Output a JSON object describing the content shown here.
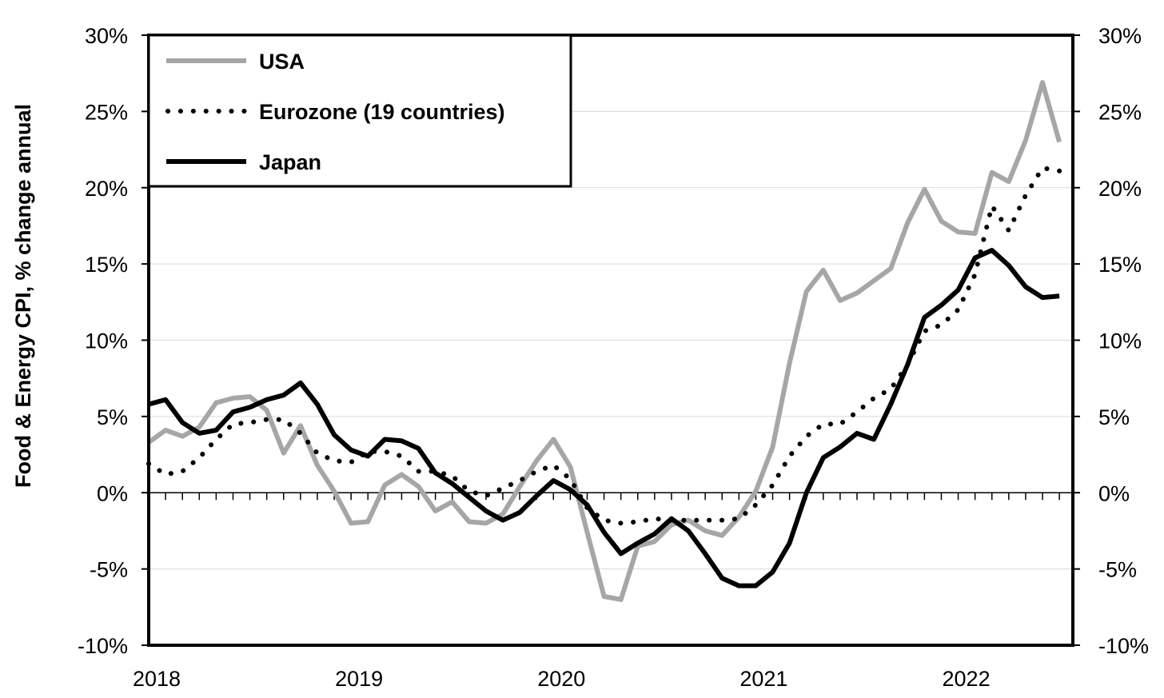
{
  "chart_data": {
    "type": "line",
    "title": "",
    "xlabel": "",
    "ylabel": "Food & Energy CPI, % change annual",
    "y_tick_labels": [
      "-10%",
      "-5%",
      "0%",
      "5%",
      "10%",
      "15%",
      "20%",
      "25%",
      "30%"
    ],
    "y_ticks": [
      -10,
      -5,
      0,
      5,
      10,
      15,
      20,
      25,
      30
    ],
    "ylim": [
      -10,
      30
    ],
    "x_tick_labels": [
      "2018",
      "2019",
      "2020",
      "2021",
      "2022"
    ],
    "x_ticks": [
      0,
      12,
      24,
      36,
      48
    ],
    "xlim": [
      0,
      54.8
    ],
    "grid": true,
    "legend_position": "top-left",
    "series": [
      {
        "name": "USA",
        "color": "#a6a6a6",
        "style": "solid",
        "x": [
          0,
          1,
          2,
          3,
          4,
          5,
          6,
          7,
          8,
          9,
          10,
          11,
          12,
          13,
          14,
          15,
          16,
          17,
          18,
          19,
          20,
          21,
          22,
          23,
          24,
          25,
          26,
          27,
          28,
          29,
          30,
          31,
          32,
          33,
          34,
          35,
          36,
          37,
          38,
          39,
          40,
          41,
          42,
          43,
          44,
          45,
          46,
          47,
          48,
          49,
          50,
          51,
          52,
          53,
          54
        ],
        "values": [
          3.3,
          4.1,
          3.7,
          4.3,
          5.9,
          6.2,
          6.3,
          5.4,
          2.6,
          4.4,
          1.8,
          0.1,
          -2.0,
          -1.9,
          0.5,
          1.2,
          0.4,
          -1.2,
          -0.6,
          -1.9,
          -2.0,
          -1.4,
          0.4,
          2.1,
          3.5,
          1.7,
          -2.6,
          -6.8,
          -7.0,
          -3.5,
          -3.2,
          -2.1,
          -1.8,
          -2.5,
          -2.8,
          -1.6,
          0.1,
          3.0,
          8.5,
          13.2,
          14.6,
          12.6,
          13.1,
          13.9,
          14.7,
          17.7,
          19.9,
          17.8,
          17.1,
          17.0,
          21.0,
          20.4,
          23.1,
          26.9,
          23.0
        ]
      },
      {
        "name": "Eurozone (19 countries)",
        "color": "#000000",
        "style": "dotted",
        "x": [
          0,
          1,
          2,
          3,
          4,
          5,
          6,
          7,
          8,
          9,
          10,
          11,
          12,
          13,
          14,
          15,
          16,
          17,
          18,
          19,
          20,
          21,
          22,
          23,
          24,
          25,
          26,
          27,
          28,
          29,
          30,
          31,
          32,
          33,
          34,
          35,
          36,
          37,
          38,
          39,
          40,
          41,
          42,
          43,
          44,
          45,
          46,
          47,
          48,
          49,
          50,
          51,
          52,
          53,
          54
        ],
        "values": [
          1.9,
          1.2,
          1.4,
          2.3,
          3.5,
          4.5,
          4.6,
          4.8,
          4.8,
          3.9,
          2.6,
          2.1,
          2.0,
          2.7,
          2.7,
          2.4,
          1.4,
          1.4,
          1.1,
          0.1,
          -0.2,
          0.3,
          0.8,
          1.4,
          1.8,
          0.9,
          -1.0,
          -1.8,
          -2.0,
          -1.9,
          -1.7,
          -1.8,
          -1.8,
          -1.8,
          -1.8,
          -1.7,
          -0.8,
          0.5,
          2.4,
          3.7,
          4.5,
          4.5,
          5.3,
          6.2,
          6.8,
          8.4,
          10.6,
          11.0,
          12.0,
          14.3,
          18.8,
          17.2,
          19.5,
          21.3,
          21.1
        ]
      },
      {
        "name": "Japan",
        "color": "#000000",
        "style": "solid",
        "x": [
          0,
          1,
          2,
          3,
          4,
          5,
          6,
          7,
          8,
          9,
          10,
          11,
          12,
          13,
          14,
          15,
          16,
          17,
          18,
          19,
          20,
          21,
          22,
          23,
          24,
          25,
          26,
          27,
          28,
          29,
          30,
          31,
          32,
          33,
          34,
          35,
          36,
          37,
          38,
          39,
          40,
          41,
          42,
          43,
          44,
          45,
          46,
          47,
          48,
          49,
          50,
          51,
          52,
          53,
          54
        ],
        "values": [
          5.8,
          6.1,
          4.6,
          3.9,
          4.1,
          5.3,
          5.6,
          6.1,
          6.4,
          7.2,
          5.8,
          3.8,
          2.8,
          2.4,
          3.5,
          3.4,
          2.9,
          1.3,
          0.6,
          -0.3,
          -1.2,
          -1.8,
          -1.3,
          -0.2,
          0.8,
          0.2,
          -0.8,
          -2.6,
          -4.0,
          -3.3,
          -2.7,
          -1.7,
          -2.5,
          -4.0,
          -5.6,
          -6.1,
          -6.1,
          -5.2,
          -3.3,
          0.0,
          2.3,
          3.0,
          3.9,
          3.5,
          5.8,
          8.4,
          11.5,
          12.3,
          13.3,
          15.4,
          15.9,
          14.9,
          13.5,
          12.8,
          12.9
        ]
      }
    ]
  }
}
